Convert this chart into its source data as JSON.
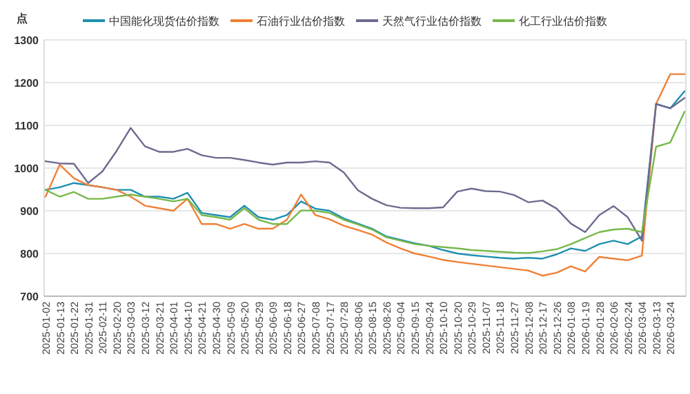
{
  "chart_data": {
    "type": "line",
    "ylabel": "点",
    "legend": "top",
    "grid": "y",
    "ylim": [
      700,
      1300
    ],
    "yticks": [
      700,
      800,
      900,
      1000,
      1100,
      1200,
      1300
    ],
    "categories": [
      "2025-01-02",
      "2025-01-13",
      "2025-01-22",
      "2025-01-31",
      "2025-02-11",
      "2025-02-20",
      "2025-03-03",
      "2025-03-12",
      "2025-03-21",
      "2025-04-01",
      "2025-04-10",
      "2025-04-21",
      "2025-04-30",
      "2025-05-09",
      "2025-05-20",
      "2025-05-29",
      "2025-06-09",
      "2025-06-18",
      "2025-06-27",
      "2025-07-08",
      "2025-07-17",
      "2025-07-28",
      "2025-08-06",
      "2025-08-15",
      "2025-08-26",
      "2025-09-04",
      "2025-09-15",
      "2025-09-24",
      "2025-10-10",
      "2025-10-20",
      "2025-10-29",
      "2025-11-07",
      "2025-11-18",
      "2025-11-27",
      "2025-12-08",
      "2025-12-17",
      "2025-12-26",
      "2026-01-08",
      "2026-01-19",
      "2026-01-28",
      "2026-02-06",
      "2026-02-24",
      "2026-03-04",
      "2026-03-13",
      "2026-03-24",
      null
    ],
    "series": [
      {
        "name": "中国能化现货估价指数",
        "color": "#1f8fb0",
        "values": [
          949,
          955,
          965,
          960,
          955,
          949,
          949,
          933,
          933,
          928,
          942,
          895,
          890,
          885,
          912,
          885,
          879,
          890,
          922,
          905,
          900,
          882,
          870,
          858,
          840,
          832,
          824,
          818,
          808,
          800,
          796,
          793,
          790,
          788,
          790,
          788,
          798,
          812,
          806,
          822,
          830,
          822,
          840,
          1150,
          1140,
          1180
        ]
      },
      {
        "name": "石油行业估价指数",
        "color": "#f07f35",
        "values": [
          933,
          1008,
          976,
          960,
          955,
          949,
          933,
          912,
          906,
          900,
          928,
          869,
          869,
          858,
          869,
          858,
          858,
          879,
          938,
          890,
          880,
          865,
          855,
          844,
          826,
          812,
          800,
          793,
          785,
          780,
          776,
          772,
          768,
          764,
          760,
          748,
          755,
          770,
          758,
          792,
          788,
          784,
          795,
          1150,
          1220,
          1220
        ]
      },
      {
        "name": "天然气行业估价指数",
        "color": "#6b6b8f",
        "values": [
          1016,
          1011,
          1010,
          965,
          992,
          1040,
          1094,
          1051,
          1038,
          1038,
          1045,
          1030,
          1024,
          1024,
          1019,
          1013,
          1008,
          1013,
          1013,
          1016,
          1013,
          990,
          948,
          928,
          913,
          907,
          906,
          906,
          908,
          945,
          952,
          946,
          945,
          937,
          920,
          924,
          905,
          870,
          850,
          890,
          911,
          885,
          830,
          1150,
          1140,
          1164
        ]
      },
      {
        "name": "化工行业估价指数",
        "color": "#77b84a",
        "values": [
          949,
          933,
          944,
          928,
          928,
          933,
          938,
          933,
          928,
          922,
          928,
          890,
          885,
          879,
          906,
          879,
          869,
          869,
          901,
          900,
          895,
          879,
          868,
          856,
          838,
          830,
          822,
          818,
          815,
          812,
          808,
          806,
          804,
          802,
          801,
          805,
          810,
          822,
          836,
          850,
          856,
          858,
          850,
          1050,
          1060,
          1132
        ]
      }
    ]
  }
}
